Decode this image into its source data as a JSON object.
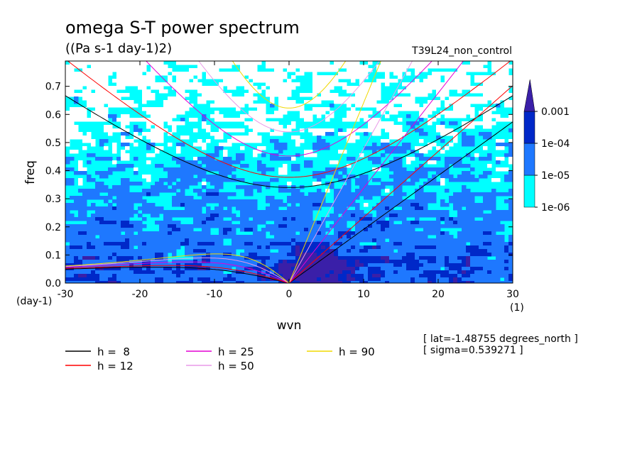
{
  "title": "omega S-T power spectrum",
  "units": "((Pa s-1 day-1)2)",
  "run_label": "T39L24_non_control",
  "info": [
    "[ lat=-1.48755 degrees_north ]",
    "[ sigma=0.539271 ]"
  ],
  "chart_data": {
    "type": "heatmap",
    "title": "omega S-T power spectrum",
    "subtitle": "((Pa s-1 day-1)2)",
    "xlabel": "wvn",
    "ylabel": "freq",
    "x_unit": "(1)",
    "y_unit": "(day-1)",
    "xlim": [
      -30,
      30
    ],
    "ylim": [
      0,
      0.79
    ],
    "x_ticks": [
      -30,
      -20,
      -10,
      0,
      10,
      20,
      30
    ],
    "x_tick_labels": [
      "-30",
      "-20",
      "-10",
      "0",
      "10",
      "20",
      "30"
    ],
    "y_ticks": [
      0,
      0.1,
      0.2,
      0.3,
      0.4,
      0.5,
      0.6,
      0.7
    ],
    "y_tick_labels": [
      "0.0",
      "0.1",
      "0.2",
      "0.3",
      "0.4",
      "0.5",
      "0.6",
      "0.7"
    ],
    "colorbar": {
      "levels": [
        "1e-06",
        "1e-05",
        "1e-04",
        "0.001"
      ],
      "colors": [
        "#00ffff",
        "#1e78ff",
        "#0028c8",
        "#3a1fa8"
      ]
    },
    "dispersion_curves": [
      {
        "label": "h =  8",
        "h": 8,
        "color": "#000000"
      },
      {
        "label": "h = 12",
        "h": 12,
        "color": "#ff0000"
      },
      {
        "label": "h = 25",
        "h": 25,
        "color": "#e400d4"
      },
      {
        "label": "h = 50",
        "h": 50,
        "color": "#e89ae8"
      },
      {
        "label": "h = 90",
        "h": 90,
        "color": "#f0d800"
      }
    ]
  }
}
